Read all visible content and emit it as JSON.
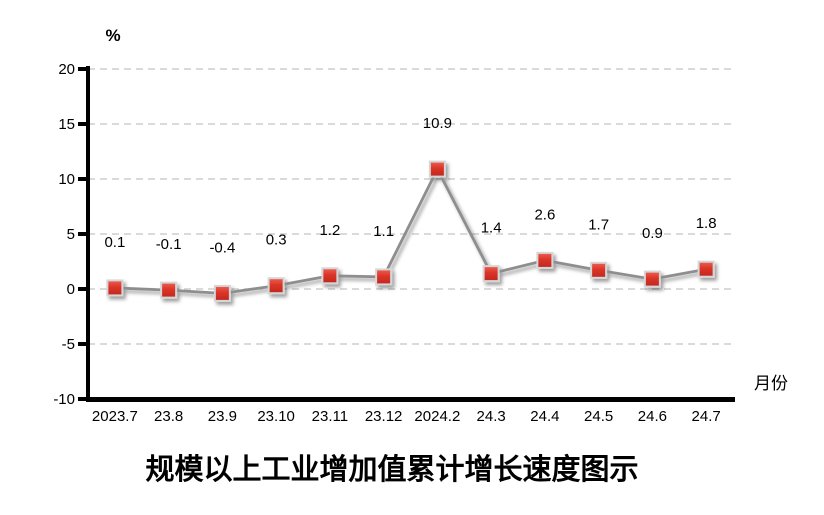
{
  "chart_data": {
    "type": "line",
    "title": "规模以上工业增加值累计增长速度图示",
    "y_axis_unit": "%",
    "x_axis_label": "月份",
    "categories": [
      "2023.7",
      "23.8",
      "23.9",
      "23.10",
      "23.11",
      "23.12",
      "2024.2",
      "24.3",
      "24.4",
      "24.5",
      "24.6",
      "24.7"
    ],
    "values": [
      0.1,
      -0.1,
      -0.4,
      0.3,
      1.2,
      1.1,
      10.9,
      1.4,
      2.6,
      1.7,
      0.9,
      1.8
    ],
    "data_labels": [
      "0.1",
      "-0.1",
      "-0.4",
      "0.3",
      "1.2",
      "1.1",
      "10.9",
      "1.4",
      "2.6",
      "1.7",
      "0.9",
      "1.8"
    ],
    "ylim": [
      -10,
      20
    ],
    "y_ticks": [
      20,
      15,
      10,
      5,
      0,
      -5,
      -10
    ],
    "grid": {
      "horizontal": true,
      "style": "dashed",
      "color": "#C4C4C4"
    },
    "legend": "none",
    "colors": {
      "line": "#8E8E8E",
      "marker_top": "#EC6052",
      "marker_mid": "#DC3428",
      "marker_bottom": "#BE281E",
      "marker_border": "#D6D6D6",
      "axis": "#000000",
      "background": "#FFFFFF"
    }
  }
}
